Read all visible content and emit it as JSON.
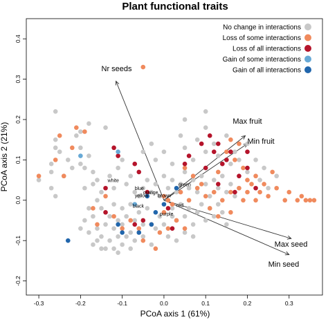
{
  "chart_data": {
    "type": "scatter",
    "title": "Plant functional traits",
    "xlabel": "PCoA axis 1  (61%)",
    "ylabel": "PCoA axis 2  (21%)",
    "xlim": [
      -0.33,
      0.38
    ],
    "ylim": [
      -0.235,
      0.45
    ],
    "x_ticks": [
      -0.3,
      -0.2,
      -0.1,
      0.0,
      0.1,
      0.2,
      0.3
    ],
    "x_tick_labels": [
      "-0.3",
      "-0.2",
      "-0.1",
      "0.0",
      "0.1",
      "0.2",
      "0.3"
    ],
    "y_ticks": [
      -0.2,
      -0.1,
      0.0,
      0.1,
      0.2,
      0.3,
      0.4
    ],
    "y_tick_labels": [
      "-0.2",
      "-0.1",
      "0.0",
      "0.1",
      "0.2",
      "0.3",
      "0.4"
    ],
    "grid": false,
    "legend_position": "top-right",
    "series": [
      {
        "name": "No change in interactions",
        "color": "#c8c8c8",
        "points": [
          [
            -0.27,
            0.03
          ],
          [
            -0.27,
            0.07
          ],
          [
            -0.27,
            0.09
          ],
          [
            -0.26,
            0.13
          ],
          [
            -0.26,
            0.15
          ],
          [
            -0.26,
            0.22
          ],
          [
            -0.25,
            0.12
          ],
          [
            -0.23,
            0.1
          ],
          [
            -0.22,
            0.08
          ],
          [
            -0.21,
            0.16
          ],
          [
            -0.2,
            0.17
          ],
          [
            -0.2,
            0.13
          ],
          [
            -0.2,
            0.09
          ],
          [
            -0.19,
            0.08
          ],
          [
            -0.19,
            0.03
          ],
          [
            -0.18,
            0.19
          ],
          [
            -0.18,
            0.11
          ],
          [
            -0.17,
            0.07
          ],
          [
            -0.17,
            0.04
          ],
          [
            -0.16,
            0.05
          ],
          [
            -0.15,
            0.02
          ],
          [
            -0.14,
            0.18
          ],
          [
            -0.13,
            0.06
          ],
          [
            -0.12,
            0.03
          ],
          [
            -0.11,
            0.08
          ],
          [
            -0.1,
            0.1
          ],
          [
            -0.09,
            0.04
          ],
          [
            -0.08,
            0.06
          ],
          [
            -0.07,
            0.02
          ],
          [
            -0.16,
            0.0
          ],
          [
            -0.15,
            -0.02
          ],
          [
            -0.14,
            -0.03
          ],
          [
            -0.14,
            -0.06
          ],
          [
            -0.13,
            -0.04
          ],
          [
            -0.12,
            -0.07
          ],
          [
            -0.12,
            -0.01
          ],
          [
            -0.11,
            -0.05
          ],
          [
            -0.1,
            -0.02
          ],
          [
            -0.1,
            -0.06
          ],
          [
            -0.09,
            -0.04
          ],
          [
            -0.08,
            -0.01
          ],
          [
            -0.08,
            -0.08
          ],
          [
            -0.07,
            -0.05
          ],
          [
            -0.06,
            -0.03
          ],
          [
            -0.05,
            -0.09
          ],
          [
            -0.05,
            -0.06
          ],
          [
            -0.04,
            -0.02
          ],
          [
            -0.03,
            -0.11
          ],
          [
            -0.02,
            -0.07
          ],
          [
            -0.01,
            -0.04
          ],
          [
            -0.17,
            -0.04
          ],
          [
            -0.16,
            -0.07
          ],
          [
            -0.15,
            -0.09
          ],
          [
            -0.13,
            -0.1
          ],
          [
            -0.12,
            -0.12
          ],
          [
            -0.1,
            -0.11
          ],
          [
            -0.09,
            -0.09
          ],
          [
            -0.16,
            -0.1
          ],
          [
            -0.14,
            -0.12
          ],
          [
            -0.11,
            -0.13
          ],
          [
            -0.08,
            -0.12
          ],
          [
            -0.06,
            -0.08
          ],
          [
            -0.18,
            -0.02
          ],
          [
            -0.19,
            -0.05
          ],
          [
            -0.2,
            -0.07
          ],
          [
            -0.18,
            -0.08
          ],
          [
            -0.17,
            -0.11
          ],
          [
            -0.15,
            -0.12
          ],
          [
            -0.11,
            -0.09
          ],
          [
            -0.07,
            -0.1
          ],
          [
            -0.06,
            0.01
          ],
          [
            -0.05,
            0.03
          ],
          [
            -0.04,
            0.05
          ],
          [
            -0.03,
            0.02
          ],
          [
            -0.02,
            0.04
          ],
          [
            -0.01,
            0.01
          ],
          [
            0.0,
            0.06
          ],
          [
            0.01,
            0.03
          ],
          [
            0.02,
            0.05
          ],
          [
            0.03,
            0.02
          ],
          [
            0.04,
            0.04
          ],
          [
            0.05,
            0.07
          ],
          [
            0.06,
            0.03
          ],
          [
            0.07,
            0.05
          ],
          [
            0.08,
            0.02
          ],
          [
            0.09,
            0.06
          ],
          [
            0.1,
            0.04
          ],
          [
            0.11,
            0.01
          ],
          [
            0.12,
            0.05
          ],
          [
            0.13,
            0.03
          ],
          [
            0.14,
            0.06
          ],
          [
            0.15,
            0.02
          ],
          [
            0.16,
            0.04
          ],
          [
            0.17,
            0.01
          ],
          [
            0.18,
            0.03
          ],
          [
            0.02,
            -0.02
          ],
          [
            0.03,
            -0.05
          ],
          [
            0.04,
            -0.01
          ],
          [
            0.05,
            -0.04
          ],
          [
            0.06,
            -0.02
          ],
          [
            0.07,
            -0.06
          ],
          [
            0.08,
            -0.03
          ],
          [
            0.09,
            -0.01
          ],
          [
            0.1,
            -0.05
          ],
          [
            0.11,
            -0.02
          ],
          [
            0.12,
            -0.04
          ],
          [
            0.13,
            -0.01
          ],
          [
            0.14,
            -0.03
          ],
          [
            0.15,
            -0.06
          ],
          [
            0.0,
            -0.06
          ],
          [
            0.01,
            -0.09
          ],
          [
            0.02,
            -0.04
          ],
          [
            0.03,
            -0.1
          ],
          [
            0.05,
            -0.08
          ],
          [
            0.07,
            -0.09
          ],
          [
            0.1,
            0.12
          ],
          [
            0.12,
            0.14
          ],
          [
            0.14,
            0.09
          ],
          [
            0.15,
            0.16
          ],
          [
            0.17,
            0.12
          ],
          [
            0.2,
            0.07
          ],
          [
            0.18,
            0.1
          ],
          [
            0.05,
            0.13
          ],
          [
            0.07,
            0.1
          ],
          [
            0.08,
            0.15
          ],
          [
            0.1,
            0.18
          ],
          [
            0.13,
            0.11
          ],
          [
            0.16,
            0.09
          ],
          [
            0.05,
            0.2
          ],
          [
            -0.03,
            0.14
          ],
          [
            -0.02,
            0.1
          ],
          [
            0.0,
            0.12
          ],
          [
            0.02,
            0.09
          ],
          [
            0.04,
            0.16
          ],
          [
            -0.05,
            0.12
          ],
          [
            0.1,
            0.22
          ],
          [
            0.2,
            0.14
          ],
          [
            0.22,
            0.1
          ],
          [
            0.24,
            0.08
          ],
          [
            0.23,
            0.05
          ],
          [
            0.25,
            0.03
          ],
          [
            0.27,
            0.06
          ],
          [
            -0.3,
            0.05
          ],
          [
            -0.26,
            0.01
          ],
          [
            -0.24,
            0.06
          ]
        ]
      },
      {
        "name": "Loss of some interactions",
        "color": "#f08a5d",
        "points": [
          [
            -0.3,
            0.06
          ],
          [
            -0.26,
            0.1
          ],
          [
            -0.25,
            0.16
          ],
          [
            -0.24,
            0.06
          ],
          [
            -0.22,
            0.13
          ],
          [
            -0.21,
            0.18
          ],
          [
            -0.19,
            0.17
          ],
          [
            -0.17,
            -0.02
          ],
          [
            -0.16,
            -0.06
          ],
          [
            -0.14,
            0.01
          ],
          [
            -0.12,
            -0.04
          ],
          [
            -0.1,
            -0.07
          ],
          [
            -0.08,
            -0.05
          ],
          [
            -0.06,
            -0.07
          ],
          [
            -0.05,
            -0.1
          ],
          [
            -0.03,
            -0.06
          ],
          [
            -0.02,
            -0.12
          ],
          [
            -0.01,
            -0.08
          ],
          [
            0.0,
            -0.03
          ],
          [
            -0.05,
            0.33
          ],
          [
            0.0,
            0.01
          ],
          [
            0.01,
            0.0
          ],
          [
            0.02,
            -0.01
          ],
          [
            0.04,
            0.02
          ],
          [
            0.06,
            0.0
          ],
          [
            0.08,
            0.03
          ],
          [
            0.1,
            0.01
          ],
          [
            0.12,
            0.02
          ],
          [
            0.14,
            0.0
          ],
          [
            0.16,
            0.02
          ],
          [
            0.18,
            0.03
          ],
          [
            0.19,
            0.0
          ],
          [
            0.2,
            0.02
          ],
          [
            0.21,
            0.04
          ],
          [
            0.22,
            0.0
          ],
          [
            0.23,
            0.02
          ],
          [
            0.25,
            0.01
          ],
          [
            0.27,
            0.03
          ],
          [
            0.29,
            0.0
          ],
          [
            0.3,
            0.02
          ],
          [
            0.32,
            0.0
          ],
          [
            0.33,
            0.01
          ],
          [
            0.34,
            0.0
          ],
          [
            0.35,
            0.0
          ],
          [
            0.36,
            0.0
          ],
          [
            0.2,
            0.05
          ],
          [
            0.24,
            0.04
          ],
          [
            0.26,
            0.07
          ],
          [
            0.22,
            0.06
          ],
          [
            0.13,
            0.07
          ],
          [
            0.15,
            0.12
          ],
          [
            0.17,
            0.1
          ],
          [
            0.19,
            0.08
          ],
          [
            0.16,
            0.15
          ],
          [
            0.18,
            0.14
          ],
          [
            0.09,
            0.04
          ],
          [
            0.07,
            0.06
          ],
          [
            0.05,
            0.08
          ],
          [
            0.11,
            -0.02
          ],
          [
            0.13,
            -0.04
          ],
          [
            0.16,
            -0.03
          ],
          [
            0.03,
            -0.05
          ],
          [
            0.05,
            -0.07
          ],
          [
            0.01,
            -0.07
          ]
        ]
      },
      {
        "name": "Loss of all interactions",
        "color": "#b5142b",
        "points": [
          [
            -0.12,
            0.13
          ],
          [
            -0.11,
            0.11
          ],
          [
            -0.07,
            0.09
          ],
          [
            -0.06,
            0.07
          ],
          [
            -0.14,
            0.03
          ],
          [
            -0.14,
            -0.03
          ],
          [
            -0.07,
            -0.06
          ],
          [
            -0.05,
            -0.05
          ],
          [
            0.01,
            -0.02
          ],
          [
            -0.04,
            0.02
          ],
          [
            0.05,
            0.09
          ],
          [
            0.06,
            0.11
          ],
          [
            0.09,
            0.14
          ],
          [
            0.1,
            0.08
          ],
          [
            0.11,
            0.16
          ],
          [
            0.12,
            0.12
          ],
          [
            0.13,
            0.14
          ],
          [
            0.14,
            0.09
          ],
          [
            0.15,
            0.1
          ],
          [
            0.16,
            0.12
          ],
          [
            0.2,
            0.12
          ],
          [
            0.2,
            0.08
          ],
          [
            0.18,
            0.06
          ],
          [
            0.13,
            0.04
          ],
          [
            0.17,
            0.02
          ],
          [
            0.22,
            0.03
          ],
          [
            0.02,
            -0.07
          ]
        ]
      },
      {
        "name": "Gain of some interactions",
        "color": "#67a9d6",
        "points": [
          [
            -0.2,
            0.11
          ],
          [
            -0.11,
            0.12
          ],
          [
            -0.07,
            -0.01
          ]
        ]
      },
      {
        "name": "Gain of all interactions",
        "color": "#2166ac",
        "points": [
          [
            -0.23,
            -0.1
          ],
          [
            -0.1,
            -0.08
          ],
          [
            -0.11,
            -0.06
          ],
          [
            -0.06,
            -0.08
          ],
          [
            -0.03,
            -0.06
          ],
          [
            0.0,
            -0.01
          ],
          [
            0.03,
            0.03
          ],
          [
            -0.04,
            0.01
          ],
          [
            -0.02,
            -0.03
          ]
        ]
      }
    ],
    "vectors": [
      {
        "label": "Nr seeds",
        "x": -0.115,
        "y": 0.295,
        "label_x": -0.15,
        "label_y": 0.32
      },
      {
        "label": "Max fruit",
        "x": 0.195,
        "y": 0.16,
        "label_x": 0.165,
        "label_y": 0.19
      },
      {
        "label": "Min fruit",
        "x": 0.2,
        "y": 0.14,
        "label_x": 0.2,
        "label_y": 0.14
      },
      {
        "label": "Max seed",
        "x": 0.305,
        "y": -0.095,
        "label_x": 0.265,
        "label_y": -0.115
      },
      {
        "label": "Min seed",
        "x": 0.3,
        "y": -0.135,
        "label_x": 0.25,
        "label_y": -0.165
      }
    ],
    "categories_labels": [
      {
        "label": "white",
        "x": -0.135,
        "y": 0.045
      },
      {
        "label": "blue",
        "x": -0.07,
        "y": 0.025
      },
      {
        "label": "orange",
        "x": -0.05,
        "y": 0.015
      },
      {
        "label": "yellow",
        "x": -0.07,
        "y": 0.007
      },
      {
        "label": "brown",
        "x": -0.015,
        "y": 0.007
      },
      {
        "label": "green",
        "x": 0.035,
        "y": 0.035
      },
      {
        "label": "black",
        "x": -0.075,
        "y": -0.018
      },
      {
        "label": "red",
        "x": 0.03,
        "y": -0.017
      },
      {
        "label": "purple",
        "x": -0.01,
        "y": -0.038
      }
    ]
  }
}
